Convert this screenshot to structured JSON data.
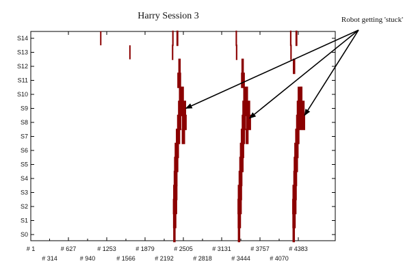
{
  "chart_data": {
    "type": "heatmap",
    "title": "Harry Session 3",
    "annotation": "Robot getting 'stuck'",
    "xlabel": "",
    "ylabel": "",
    "y_categories": [
      "S0",
      "S1",
      "S2",
      "S3",
      "S4",
      "S5",
      "S6",
      "S7",
      "S8",
      "S9",
      "S10",
      "S11",
      "S12",
      "S13",
      "S14"
    ],
    "x_tick_labels_upper": [
      "# 1",
      "# 627",
      "# 1253",
      "# 1879",
      "# 2505",
      "# 3131",
      "# 3757",
      "# 4383"
    ],
    "x_tick_labels_lower": [
      "# 314",
      "# 940",
      "# 1566",
      "# 2192",
      "# 2818",
      "# 3444",
      "# 4070"
    ],
    "xlim": [
      1,
      4700
    ],
    "mark_color": "#8b0000",
    "annotation_arrow_targets": [
      {
        "x": 2580,
        "state": 9.0
      },
      {
        "x": 3640,
        "state": 8.3
      },
      {
        "x": 4555,
        "state": 8.5
      }
    ],
    "stuck_episodes": [
      {
        "name": "episode-1",
        "cells": [
          [
            2390,
            0,
            0.5
          ],
          [
            2395,
            1,
            0.7
          ],
          [
            2400,
            2,
            0.9
          ],
          [
            2405,
            3,
            0.9
          ],
          [
            2410,
            4,
            0.8
          ],
          [
            2420,
            5,
            0.9
          ],
          [
            2430,
            6,
            0.9
          ],
          [
            2450,
            7,
            0.9
          ],
          [
            2470,
            8,
            0.9
          ],
          [
            2490,
            9,
            1
          ],
          [
            2505,
            10,
            1
          ],
          [
            2520,
            10,
            0.7
          ],
          [
            2545,
            9,
            1
          ],
          [
            2555,
            8,
            1
          ],
          [
            2540,
            7,
            0.7
          ],
          [
            2470,
            11,
            0.8
          ],
          [
            2475,
            12,
            0.5
          ],
          [
            2360,
            13,
            0.3
          ],
          [
            2365,
            14,
            0.3
          ],
          [
            2440,
            14,
            0.4
          ]
        ]
      },
      {
        "name": "episode-2",
        "cells": [
          [
            3465,
            0,
            0.5
          ],
          [
            3470,
            1,
            0.7
          ],
          [
            3475,
            2,
            0.9
          ],
          [
            3480,
            3,
            0.9
          ],
          [
            3490,
            4,
            0.8
          ],
          [
            3505,
            5,
            0.9
          ],
          [
            3515,
            6,
            0.9
          ],
          [
            3530,
            7,
            0.9
          ],
          [
            3545,
            8,
            0.9
          ],
          [
            3560,
            9,
            1
          ],
          [
            3575,
            10,
            1
          ],
          [
            3590,
            10,
            0.6
          ],
          [
            3615,
            9,
            0.9
          ],
          [
            3625,
            8,
            1
          ],
          [
            3600,
            7,
            0.6
          ],
          [
            3530,
            11,
            0.8
          ],
          [
            3525,
            12,
            0.5
          ],
          [
            3425,
            13,
            0.3
          ],
          [
            3420,
            14,
            0.3
          ]
        ]
      },
      {
        "name": "episode-3",
        "cells": [
          [
            4375,
            0,
            0.5
          ],
          [
            4380,
            1,
            0.7
          ],
          [
            4385,
            2,
            0.9
          ],
          [
            4390,
            3,
            0.9
          ],
          [
            4400,
            4,
            0.8
          ],
          [
            4410,
            5,
            0.9
          ],
          [
            4420,
            6,
            0.9
          ],
          [
            4435,
            7,
            0.9
          ],
          [
            4450,
            8,
            0.9
          ],
          [
            4465,
            9,
            1
          ],
          [
            4480,
            10,
            1
          ],
          [
            4495,
            10,
            0.6
          ],
          [
            4520,
            9,
            0.9
          ],
          [
            4525,
            8,
            1
          ],
          [
            4380,
            12,
            0.5
          ],
          [
            4330,
            13,
            0.3
          ],
          [
            4325,
            14,
            0.3
          ],
          [
            4420,
            14,
            0.4
          ]
        ]
      }
    ],
    "isolated_marks": [
      {
        "x": 1165,
        "state": 14,
        "width": 0.3
      },
      {
        "x": 1650,
        "state": 13,
        "width": 0.3
      }
    ]
  }
}
